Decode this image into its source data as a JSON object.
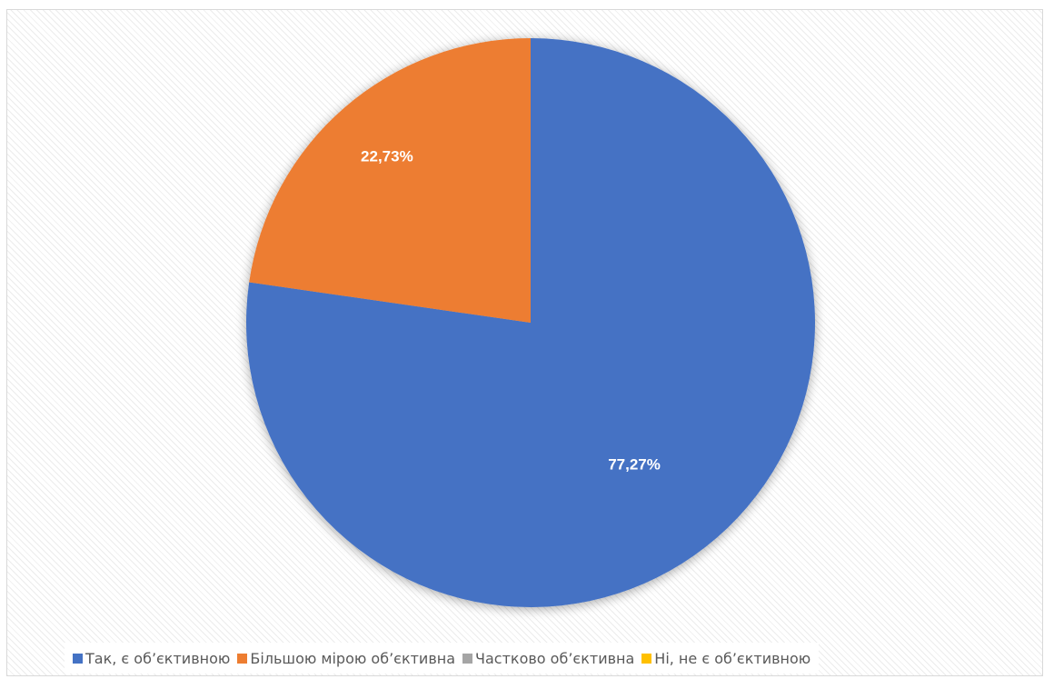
{
  "chart_data": {
    "type": "pie",
    "title": "",
    "categories": [
      "Так, є об’єктивною",
      "Більшою мірою об’єктивна",
      "Частково об’єктивна",
      "Ні, не є об’єктивною"
    ],
    "values": [
      77.27,
      22.73,
      0,
      0
    ],
    "data_labels": [
      "77,27%",
      "22,73%",
      "",
      ""
    ],
    "colors": [
      "#4472C4",
      "#ED7D31",
      "#A5A5A5",
      "#FFC000"
    ],
    "start_angle_deg": 0,
    "direction": "clockwise",
    "legend_position": "bottom"
  }
}
